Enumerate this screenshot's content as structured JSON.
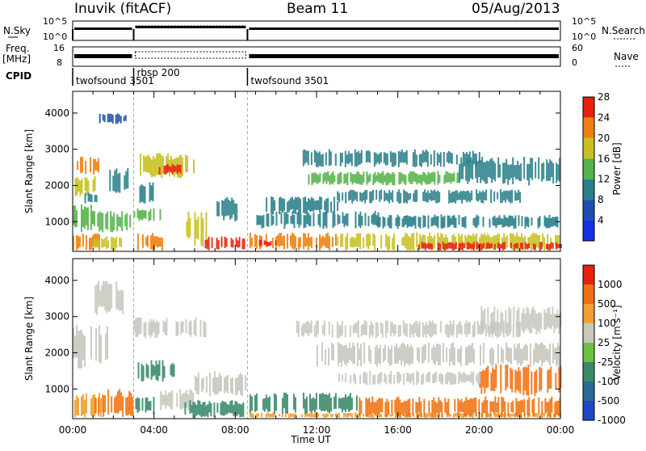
{
  "header": {
    "station": "Inuvik (fitACF)",
    "beam": "Beam 11",
    "date": "05/Aug/2013"
  },
  "summary": {
    "nsky_label": "N.Sky",
    "freq_label_1": "Freq.",
    "freq_label_2": "[MHz]",
    "cpid_label": "CPID",
    "nsearch_label": "N.Search",
    "nave_label": "Nave",
    "nsky_ticks": [
      "10^5",
      "10^0"
    ],
    "nsearch_ticks": [
      "10^5",
      "10^0"
    ],
    "freq_ticks": [
      "16",
      "8"
    ],
    "nave_ticks": [
      "60",
      "0"
    ],
    "cpid_blocks": [
      {
        "name": "twofsound 3501",
        "start_h": 0.0,
        "end_h": 3.0
      },
      {
        "name": "rbsp 200",
        "start_h": 3.0,
        "end_h": 8.6
      },
      {
        "name": "twofsound 3501",
        "start_h": 8.6,
        "end_h": 24.0
      }
    ]
  },
  "chart_data": [
    {
      "type": "heatmap",
      "panel": "power",
      "ylabel": "Slant Range [km]",
      "y_ticks": [
        1000,
        2000,
        3000,
        4000
      ],
      "ylim": [
        180,
        4600
      ],
      "x_range_hours": [
        0,
        24
      ],
      "colorbar": {
        "label": "Power [dB]",
        "ticks": [
          4,
          8,
          12,
          16,
          20,
          24,
          28
        ],
        "colors": [
          "#1530e6",
          "#1e4fb0",
          "#2a7f8a",
          "#55b24a",
          "#c8c020",
          "#f08010",
          "#e8200c"
        ]
      },
      "regions": [
        {
          "t0": 0.0,
          "t1": 1.3,
          "r0": 200,
          "r1": 700,
          "level": 5
        },
        {
          "t0": 0.0,
          "t1": 1.1,
          "r0": 700,
          "r1": 1500,
          "level": 3
        },
        {
          "t0": 0.1,
          "t1": 1.4,
          "r0": 1700,
          "r1": 2300,
          "level": 4
        },
        {
          "t0": 0.2,
          "t1": 1.3,
          "r0": 2300,
          "r1": 2800,
          "level": 5
        },
        {
          "t0": 0.5,
          "t1": 1.2,
          "r0": 1500,
          "r1": 1800,
          "level": 2
        },
        {
          "t0": 1.0,
          "t1": 2.5,
          "r0": 200,
          "r1": 600,
          "level": 4
        },
        {
          "t0": 1.2,
          "t1": 2.8,
          "r0": 700,
          "r1": 1300,
          "level": 3
        },
        {
          "t0": 1.8,
          "t1": 2.7,
          "r0": 1700,
          "r1": 2500,
          "level": 2
        },
        {
          "t0": 1.3,
          "t1": 2.6,
          "r0": 3700,
          "r1": 4000,
          "level": 1
        },
        {
          "t0": 3.2,
          "t1": 4.2,
          "r0": 1500,
          "r1": 2100,
          "level": 2
        },
        {
          "t0": 3.3,
          "t1": 6.0,
          "r0": 2200,
          "r1": 2900,
          "level": 4
        },
        {
          "t0": 4.0,
          "t1": 5.3,
          "r0": 2300,
          "r1": 2600,
          "level": 6
        },
        {
          "t0": 3.0,
          "t1": 4.3,
          "r0": 1000,
          "r1": 1400,
          "level": 3
        },
        {
          "t0": 3.1,
          "t1": 4.4,
          "r0": 200,
          "r1": 700,
          "level": 5
        },
        {
          "t0": 5.5,
          "t1": 6.6,
          "r0": 300,
          "r1": 1300,
          "level": 4
        },
        {
          "t0": 6.5,
          "t1": 8.5,
          "r0": 200,
          "r1": 600,
          "level": 6
        },
        {
          "t0": 7.0,
          "t1": 8.2,
          "r0": 1000,
          "r1": 1700,
          "level": 2
        },
        {
          "t0": 8.7,
          "t1": 13.0,
          "r0": 200,
          "r1": 700,
          "level": 5
        },
        {
          "t0": 9.0,
          "t1": 10.0,
          "r0": 300,
          "r1": 500,
          "level": 6
        },
        {
          "t0": 8.8,
          "t1": 15.0,
          "r0": 800,
          "r1": 1300,
          "level": 2
        },
        {
          "t0": 13.0,
          "t1": 24.0,
          "r0": 200,
          "r1": 700,
          "level": 4
        },
        {
          "t0": 17.0,
          "t1": 24.0,
          "r0": 200,
          "r1": 450,
          "level": 6
        },
        {
          "t0": 9.5,
          "t1": 13.0,
          "r0": 1200,
          "r1": 1700,
          "level": 2
        },
        {
          "t0": 11.0,
          "t1": 20.0,
          "r0": 2500,
          "r1": 3000,
          "level": 2
        },
        {
          "t0": 11.5,
          "t1": 19.0,
          "r0": 2000,
          "r1": 2400,
          "level": 3
        },
        {
          "t0": 13.0,
          "t1": 22.0,
          "r0": 1500,
          "r1": 1900,
          "level": 2
        },
        {
          "t0": 19.0,
          "t1": 24.0,
          "r0": 2000,
          "r1": 2800,
          "level": 2
        },
        {
          "t0": 15.0,
          "t1": 24.0,
          "r0": 800,
          "r1": 1200,
          "level": 2
        }
      ]
    },
    {
      "type": "heatmap",
      "panel": "velocity",
      "ylabel": "Slant Range [km]",
      "xlabel": "Time UT",
      "x_ticks": [
        "00:00",
        "04:00",
        "08:00",
        "12:00",
        "16:00",
        "20:00",
        "00:00"
      ],
      "y_ticks": [
        1000,
        2000,
        3000,
        4000
      ],
      "ylim": [
        180,
        4600
      ],
      "x_range_hours": [
        0,
        24
      ],
      "colorbar": {
        "label": "Velocity [m s⁻¹]",
        "ticks": [
          "1000",
          "500",
          "100",
          "25",
          "-25",
          "-100",
          "-500",
          "-1000"
        ],
        "colors": [
          "#2046c8",
          "#2a6a9a",
          "#3a8a6a",
          "#6cc040",
          "#c8c8c0",
          "#f0a030",
          "#f07010",
          "#e82010"
        ]
      },
      "regions": [
        {
          "t0": 0.0,
          "t1": 1.8,
          "r0": 1500,
          "r1": 2800,
          "level": 4
        },
        {
          "t0": 0.0,
          "t1": 1.5,
          "r0": 200,
          "r1": 900,
          "level": 5
        },
        {
          "t0": 1.0,
          "t1": 3.0,
          "r0": 200,
          "r1": 1000,
          "level": 6
        },
        {
          "t0": 1.0,
          "t1": 2.5,
          "r0": 3000,
          "r1": 4000,
          "level": 4
        },
        {
          "t0": 3.0,
          "t1": 6.5,
          "r0": 2400,
          "r1": 3000,
          "level": 4
        },
        {
          "t0": 3.2,
          "t1": 5.0,
          "r0": 1200,
          "r1": 1800,
          "level": 2
        },
        {
          "t0": 3.0,
          "t1": 4.0,
          "r0": 300,
          "r1": 800,
          "level": 2
        },
        {
          "t0": 4.3,
          "t1": 6.0,
          "r0": 400,
          "r1": 1000,
          "level": 4
        },
        {
          "t0": 5.5,
          "t1": 8.5,
          "r0": 200,
          "r1": 700,
          "level": 2
        },
        {
          "t0": 6.0,
          "t1": 8.5,
          "r0": 800,
          "r1": 1500,
          "level": 4
        },
        {
          "t0": 8.7,
          "t1": 14.0,
          "r0": 300,
          "r1": 900,
          "level": 2
        },
        {
          "t0": 8.7,
          "t1": 24.0,
          "r0": 200,
          "r1": 350,
          "level": 5
        },
        {
          "t0": 14.0,
          "t1": 24.0,
          "r0": 200,
          "r1": 800,
          "level": 6
        },
        {
          "t0": 20.0,
          "t1": 24.0,
          "r0": 800,
          "r1": 1700,
          "level": 6
        },
        {
          "t0": 11.0,
          "t1": 22.0,
          "r0": 2400,
          "r1": 2900,
          "level": 4
        },
        {
          "t0": 12.0,
          "t1": 24.0,
          "r0": 1600,
          "r1": 2300,
          "level": 4
        },
        {
          "t0": 13.0,
          "t1": 20.0,
          "r0": 1100,
          "r1": 1500,
          "level": 4
        },
        {
          "t0": 20.0,
          "t1": 24.0,
          "r0": 2500,
          "r1": 3300,
          "level": 4
        }
      ]
    }
  ]
}
